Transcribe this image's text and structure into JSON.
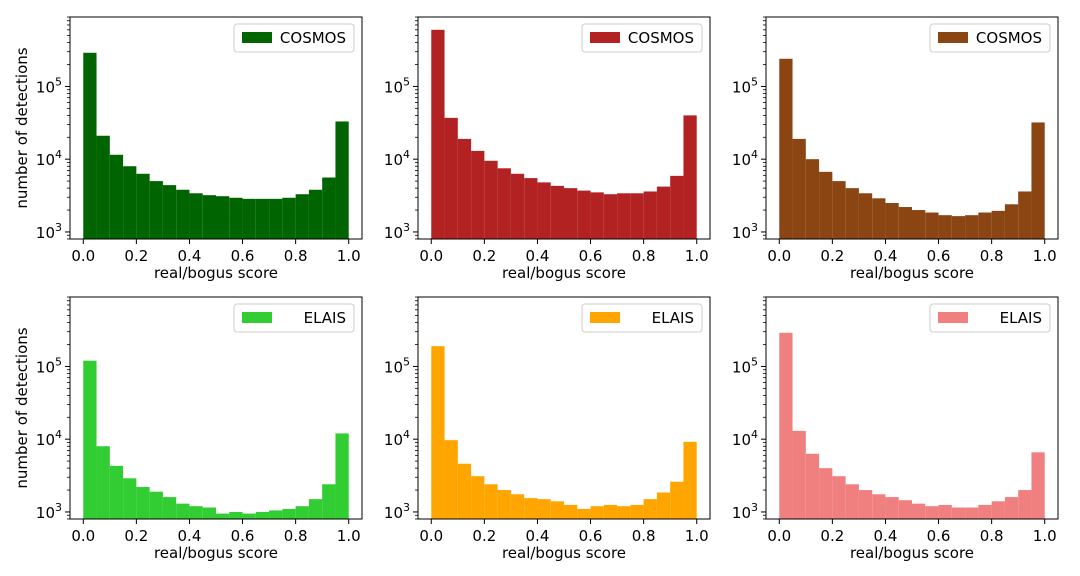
{
  "figure": {
    "xlabel": "real/bogus score",
    "ylabel": "number of detections",
    "bin_edges": [
      0.0,
      0.05,
      0.1,
      0.15,
      0.2,
      0.25,
      0.3,
      0.35,
      0.4,
      0.45,
      0.5,
      0.55,
      0.6,
      0.65,
      0.7,
      0.75,
      0.8,
      0.85,
      0.9,
      0.95,
      1.0
    ],
    "x_ticks": [
      0.0,
      0.2,
      0.4,
      0.6,
      0.8,
      1.0
    ],
    "x_tick_labels": [
      "0.0",
      "0.2",
      "0.4",
      "0.6",
      "0.8",
      "1.0"
    ],
    "y_scale": "log",
    "y_ticks": [
      1000,
      10000,
      100000
    ],
    "y_tick_labels": [
      {
        "base": "10",
        "exp": "3"
      },
      {
        "base": "10",
        "exp": "4"
      },
      {
        "base": "10",
        "exp": "5"
      }
    ]
  },
  "chart_data": [
    {
      "type": "bar",
      "layout": "histogram",
      "row": 0,
      "col": 0,
      "xlim": [
        -0.05,
        1.05
      ],
      "ylim": [
        800,
        900000
      ],
      "xlabel": "real/bogus score",
      "ylabel": "number of detections",
      "legend_position": "top-right",
      "grid": false,
      "series": [
        {
          "name": "COSMOS",
          "color": "#006400",
          "values": [
            290000,
            21000,
            11500,
            8000,
            6300,
            5000,
            4400,
            3800,
            3400,
            3200,
            3100,
            2950,
            2850,
            2850,
            2850,
            2950,
            3300,
            3800,
            5600,
            33000
          ]
        }
      ]
    },
    {
      "type": "bar",
      "layout": "histogram",
      "row": 0,
      "col": 1,
      "xlim": [
        -0.05,
        1.05
      ],
      "ylim": [
        800,
        900000
      ],
      "xlabel": "real/bogus score",
      "ylabel": "",
      "legend_position": "top-right",
      "grid": false,
      "series": [
        {
          "name": "COSMOS",
          "color": "#b22222",
          "values": [
            600000,
            37000,
            19000,
            13000,
            9500,
            7500,
            6300,
            5500,
            4800,
            4300,
            4000,
            3700,
            3500,
            3300,
            3400,
            3400,
            3600,
            4200,
            5900,
            40000
          ]
        }
      ]
    },
    {
      "type": "bar",
      "layout": "histogram",
      "row": 0,
      "col": 2,
      "xlim": [
        -0.05,
        1.05
      ],
      "ylim": [
        800,
        900000
      ],
      "xlabel": "real/bogus score",
      "ylabel": "",
      "legend_position": "top-right",
      "grid": false,
      "series": [
        {
          "name": "COSMOS",
          "color": "#8b4513",
          "values": [
            240000,
            19000,
            10000,
            6700,
            5000,
            4000,
            3400,
            2900,
            2500,
            2200,
            2000,
            1850,
            1700,
            1650,
            1700,
            1850,
            1950,
            2400,
            3600,
            32000
          ]
        }
      ]
    },
    {
      "type": "bar",
      "layout": "histogram",
      "row": 1,
      "col": 0,
      "xlim": [
        -0.05,
        1.05
      ],
      "ylim": [
        800,
        900000
      ],
      "xlabel": "real/bogus score",
      "ylabel": "number of detections",
      "legend_position": "top-right",
      "grid": false,
      "series": [
        {
          "name": "ELAIS",
          "color": "#32cd32",
          "values": [
            120000,
            8000,
            4300,
            2900,
            2200,
            1900,
            1600,
            1300,
            1200,
            1150,
            950,
            1000,
            950,
            1000,
            1050,
            1100,
            1200,
            1500,
            2400,
            12000
          ]
        }
      ]
    },
    {
      "type": "bar",
      "layout": "histogram",
      "row": 1,
      "col": 1,
      "xlim": [
        -0.05,
        1.05
      ],
      "ylim": [
        800,
        900000
      ],
      "xlabel": "real/bogus score",
      "ylabel": "",
      "legend_position": "top-right",
      "grid": false,
      "series": [
        {
          "name": "ELAIS",
          "color": "#ffa500",
          "values": [
            190000,
            9700,
            4600,
            3100,
            2400,
            2000,
            1750,
            1550,
            1500,
            1400,
            1250,
            1100,
            1200,
            1250,
            1200,
            1250,
            1500,
            1850,
            2600,
            9200
          ]
        }
      ]
    },
    {
      "type": "bar",
      "layout": "histogram",
      "row": 1,
      "col": 2,
      "xlim": [
        -0.05,
        1.05
      ],
      "ylim": [
        800,
        900000
      ],
      "xlabel": "real/bogus score",
      "ylabel": "",
      "legend_position": "top-right",
      "grid": false,
      "series": [
        {
          "name": "ELAIS",
          "color": "#f08080",
          "values": [
            290000,
            13000,
            6300,
            4000,
            3100,
            2400,
            2000,
            1750,
            1600,
            1450,
            1300,
            1200,
            1250,
            1150,
            1150,
            1250,
            1400,
            1600,
            2000,
            6600
          ]
        }
      ]
    }
  ]
}
